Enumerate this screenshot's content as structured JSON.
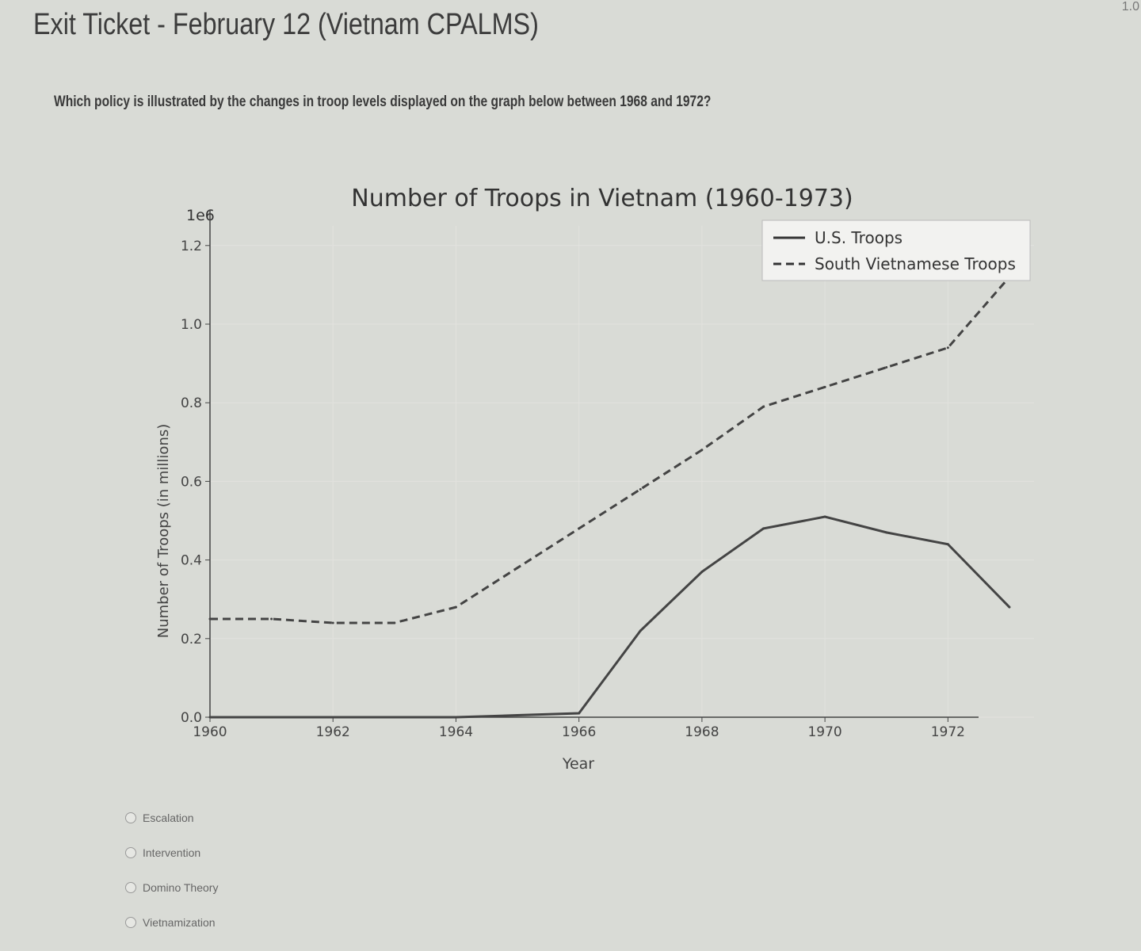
{
  "page": {
    "title": "Exit Ticket - February 12 (Vietnam CPALMS)",
    "corner_text": "1.0",
    "question": "Which policy is illustrated by the changes in troop levels displayed on the graph below between 1968 and 1972?"
  },
  "options": [
    "Escalation",
    "Intervention",
    "Domino Theory",
    "Vietnamization"
  ],
  "chart_data": {
    "type": "line",
    "title": "Number of Troops in Vietnam (1960-1973)",
    "xlabel": "Year",
    "ylabel": "Number of Troops (in millions)",
    "y_offset_label": "1e6",
    "x": [
      1960,
      1961,
      1962,
      1963,
      1964,
      1965,
      1966,
      1967,
      1968,
      1969,
      1970,
      1971,
      1972,
      1973
    ],
    "xticks": [
      "1960",
      "1962",
      "1964",
      "1966",
      "1968",
      "1970",
      "1972"
    ],
    "yticks": [
      "0.0",
      "0.2",
      "0.4",
      "0.6",
      "0.8",
      "1.0",
      "1.2"
    ],
    "xlim": [
      1960,
      1973.4
    ],
    "ylim": [
      0,
      1.25
    ],
    "grid": true,
    "legend": "top-right",
    "series": [
      {
        "name": "U.S. Troops",
        "style": "solid",
        "color": "#444444",
        "values": [
          0,
          0,
          0,
          0,
          0,
          0.005,
          0.01,
          0.22,
          0.37,
          0.48,
          0.51,
          0.47,
          0.44,
          0.28
        ]
      },
      {
        "name": "South Vietnamese Troops",
        "style": "dashed",
        "color": "#444444",
        "values": [
          0.25,
          0.25,
          0.24,
          0.24,
          0.28,
          0.38,
          0.48,
          0.58,
          0.68,
          0.79,
          0.84,
          0.89,
          0.94,
          1.12
        ]
      }
    ]
  }
}
